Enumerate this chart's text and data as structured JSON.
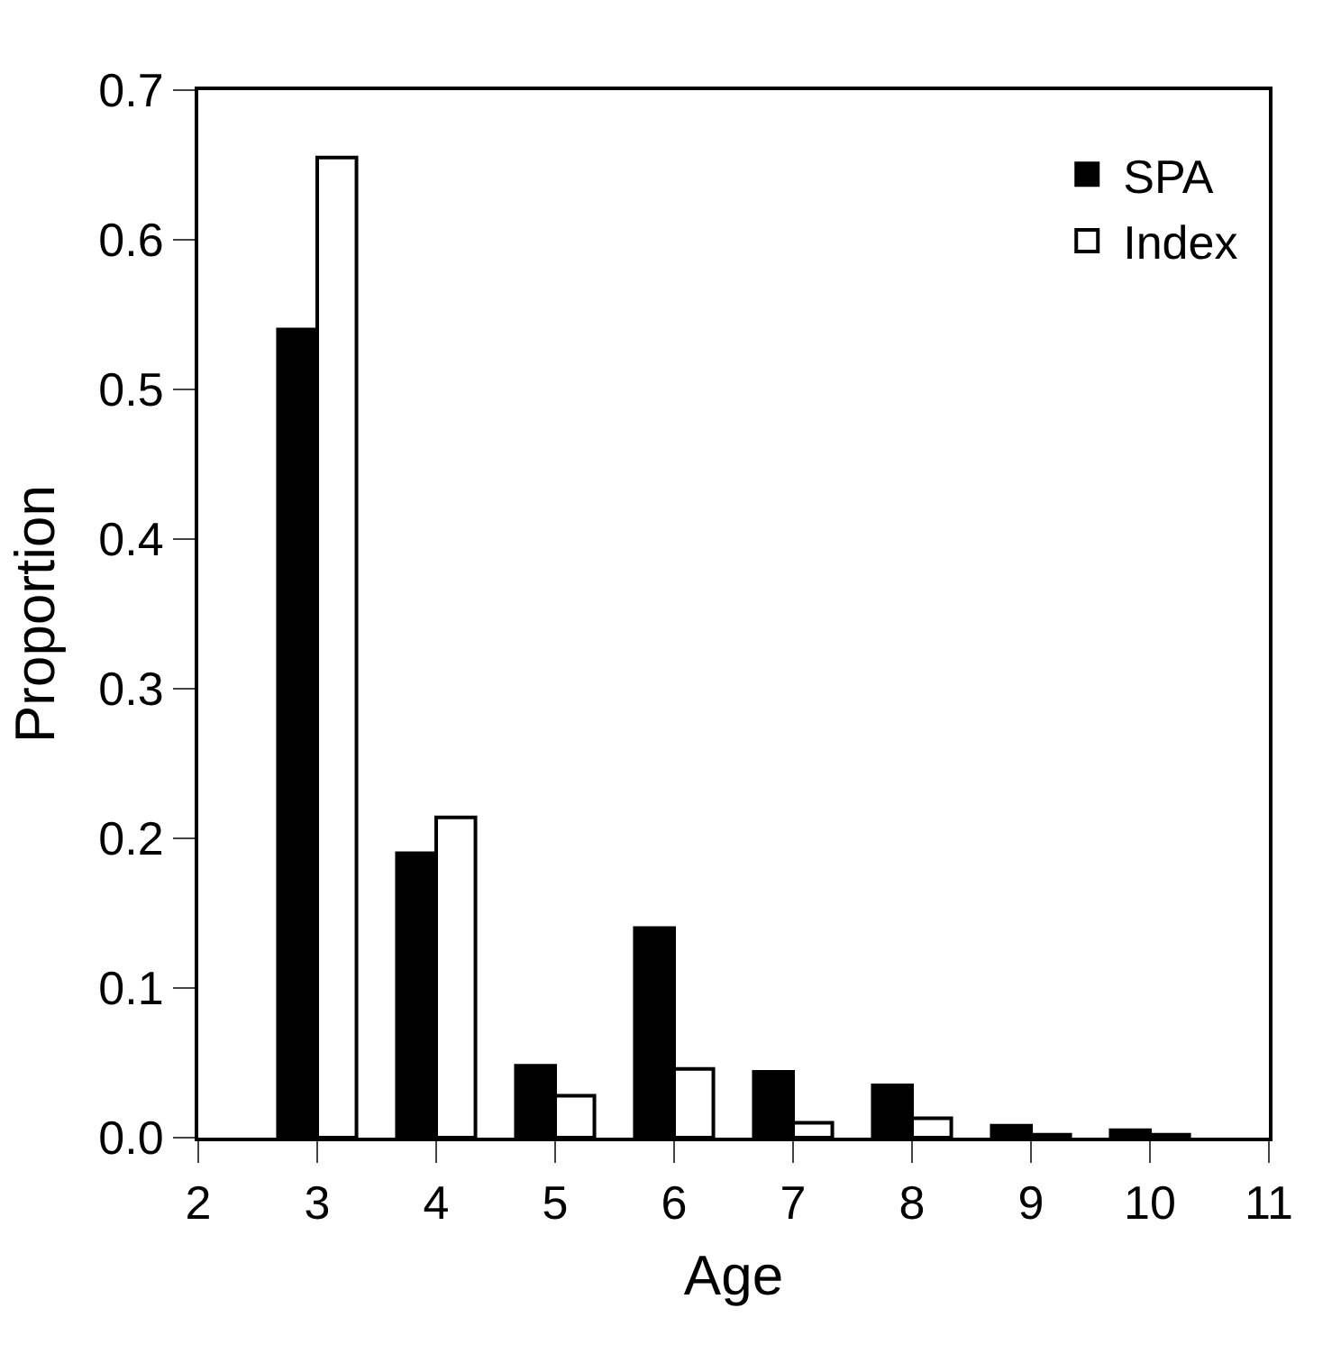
{
  "chart_data": {
    "type": "bar",
    "xlabel": "Age",
    "ylabel": "Proportion",
    "x": [
      3,
      4,
      5,
      6,
      7,
      8,
      9,
      10
    ],
    "series": [
      {
        "name": "SPA",
        "color": "#000000",
        "values": [
          0.54,
          0.19,
          0.048,
          0.14,
          0.044,
          0.035,
          0.008,
          0.005
        ]
      },
      {
        "name": "Index",
        "color": "#ffffff",
        "values": [
          0.655,
          0.214,
          0.028,
          0.046,
          0.01,
          0.013,
          0.002,
          0.002
        ]
      }
    ],
    "xlim": [
      2,
      11
    ],
    "xticks": [
      2,
      3,
      4,
      5,
      6,
      7,
      8,
      9,
      10,
      11
    ],
    "ylim": [
      0,
      0.7
    ],
    "yticks": [
      {
        "value": 0,
        "label": "0.0"
      },
      0.1,
      0.2,
      0.3,
      0.4,
      0.5,
      0.6,
      0.7
    ],
    "legend": "top right"
  }
}
